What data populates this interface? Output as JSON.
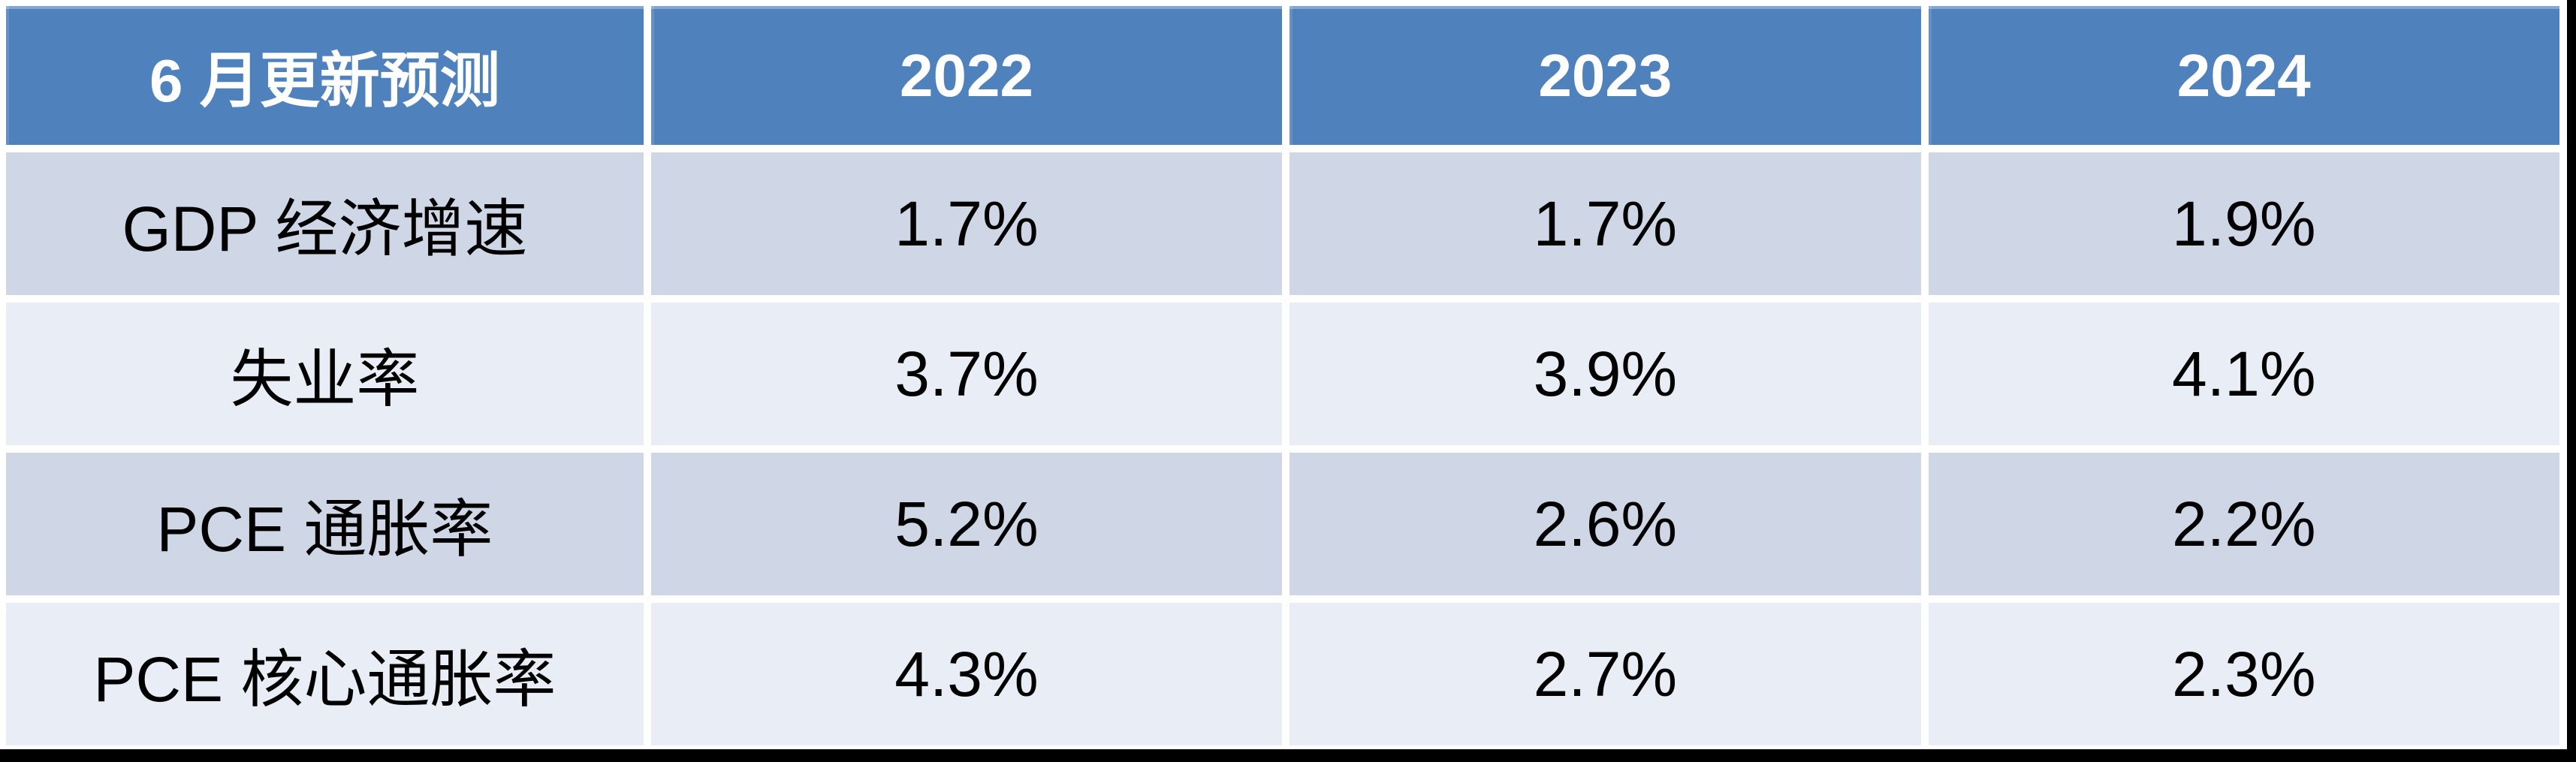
{
  "table": {
    "header": {
      "title": "6 月更新预测",
      "years": [
        "2022",
        "2023",
        "2024"
      ]
    },
    "rows": [
      {
        "label": "GDP 经济增速",
        "values": [
          "1.7%",
          "1.7%",
          "1.9%"
        ]
      },
      {
        "label": "失业率",
        "values": [
          "3.7%",
          "3.9%",
          "4.1%"
        ]
      },
      {
        "label": "PCE 通胀率",
        "values": [
          "5.2%",
          "2.6%",
          "2.2%"
        ]
      },
      {
        "label": "PCE 核心通胀率",
        "values": [
          "4.3%",
          "2.7%",
          "2.3%"
        ]
      }
    ]
  },
  "colors": {
    "header_bg": "#4F81BD",
    "band_dark": "#CFD6E6",
    "band_light": "#E9EDF5",
    "header_text": "#FFFFFF",
    "body_text": "#000000",
    "gutter": "#FFFFFF",
    "frame_edge": "#000000"
  },
  "chart_data": {
    "type": "table",
    "title": "6 月更新预测",
    "columns": [
      "6 月更新预测",
      "2022",
      "2023",
      "2024"
    ],
    "rows": [
      [
        "GDP 经济增速",
        "1.7%",
        "1.7%",
        "1.9%"
      ],
      [
        "失业率",
        "3.7%",
        "3.9%",
        "4.1%"
      ],
      [
        "PCE 通胀率",
        "5.2%",
        "2.6%",
        "2.2%"
      ],
      [
        "PCE 核心通胀率",
        "4.3%",
        "2.7%",
        "2.3%"
      ]
    ],
    "series": [
      {
        "name": "GDP 经济增速",
        "values_percent": [
          1.7,
          1.7,
          1.9
        ]
      },
      {
        "name": "失业率",
        "values_percent": [
          3.7,
          3.9,
          4.1
        ]
      },
      {
        "name": "PCE 通胀率",
        "values_percent": [
          5.2,
          2.6,
          2.2
        ]
      },
      {
        "name": "PCE 核心通胀率",
        "values_percent": [
          4.3,
          2.7,
          2.3
        ]
      }
    ],
    "x": [
      2022,
      2023,
      2024
    ]
  }
}
